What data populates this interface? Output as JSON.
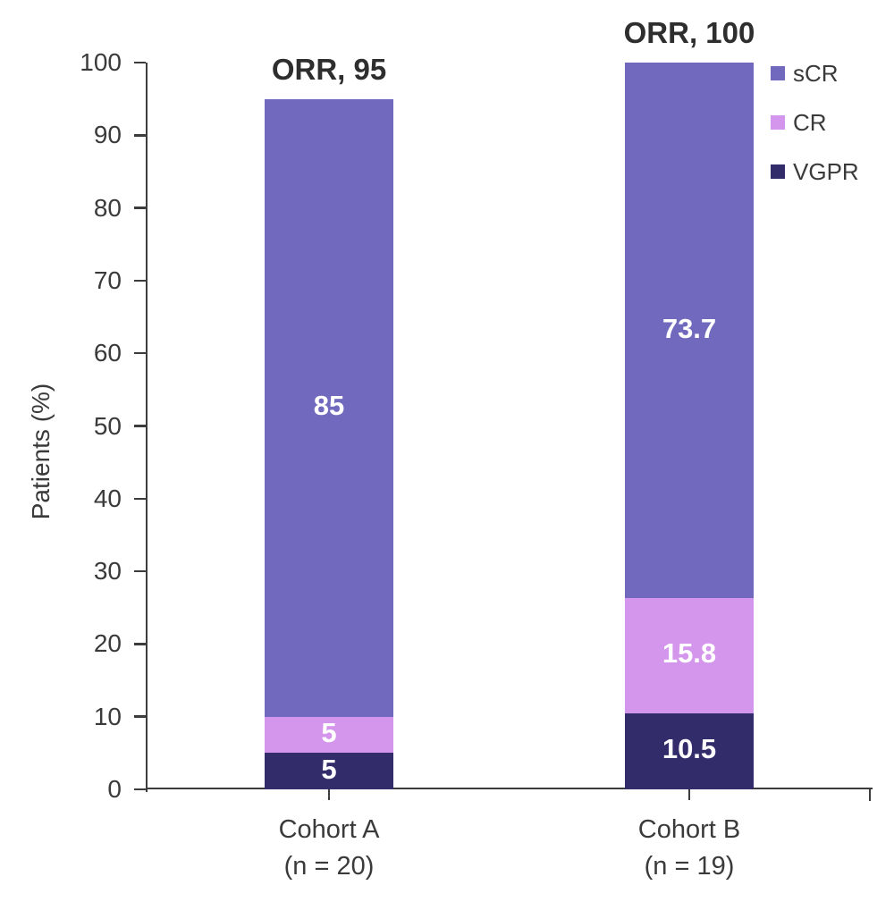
{
  "chart_data": {
    "type": "bar",
    "stacked": true,
    "title": "",
    "ylabel": "Patients (%)",
    "xlabel": "",
    "ylim": [
      0,
      100
    ],
    "yticks": [
      0,
      10,
      20,
      30,
      40,
      50,
      60,
      70,
      80,
      90,
      100
    ],
    "grid": false,
    "legend_position": "top-right",
    "legend_order": [
      "sCR",
      "CR",
      "VGPR"
    ],
    "categories": [
      {
        "label": "Cohort A",
        "sublabel": "(n = 20)",
        "annotation": "ORR, 95"
      },
      {
        "label": "Cohort B",
        "sublabel": "(n = 19)",
        "annotation": "ORR, 100"
      }
    ],
    "series": [
      {
        "name": "VGPR",
        "color": "#332C6B",
        "values": [
          5,
          10.5
        ],
        "value_labels": [
          "5",
          "10.5"
        ]
      },
      {
        "name": "CR",
        "color": "#D495EC",
        "values": [
          5,
          15.8
        ],
        "value_labels": [
          "5",
          "15.8"
        ]
      },
      {
        "name": "sCR",
        "color": "#7169BE",
        "values": [
          85,
          73.7
        ],
        "value_labels": [
          "85",
          "73.7"
        ]
      }
    ]
  },
  "colors": {
    "background": "#FFFFFF",
    "axis": "#3C3C3C",
    "tick_label": "#3A3A3A",
    "annotation_text": "#2E2E2E",
    "bar_value_text": "#FFFFFF"
  }
}
